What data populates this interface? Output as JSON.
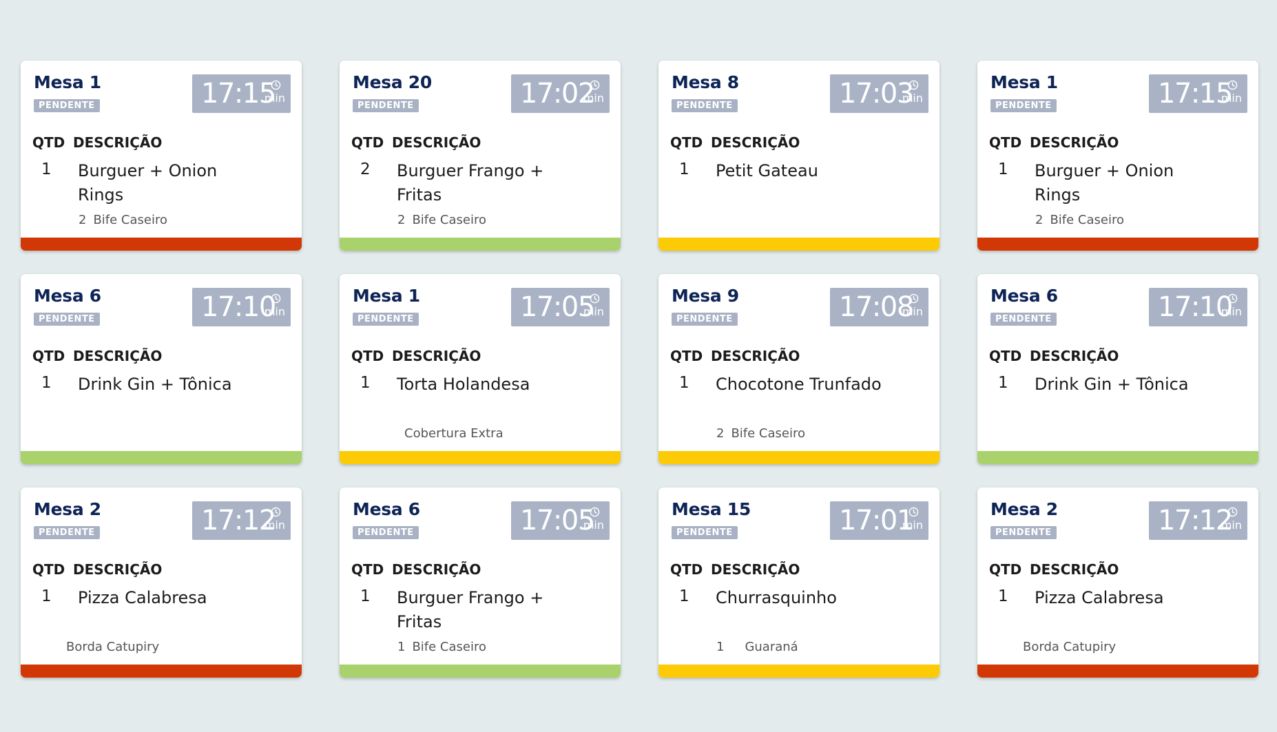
{
  "labels": {
    "status": "PENDENTE",
    "qtd_header": "QTD",
    "desc_header": "DESCRIÇÃO",
    "timer_unit": "min"
  },
  "icons": {
    "timer": "clock-icon"
  },
  "colors": {
    "red": "#d23805",
    "green": "#a9d26d",
    "yellow": "#fccb06",
    "title": "#0e2456",
    "timer_bg": "#a9b3c5",
    "background": "#e3ebec"
  },
  "orders": [
    {
      "table": "Mesa 1",
      "time": "17:15",
      "qty": "1",
      "item": "Burguer + Onion Rings",
      "extra_qty": "2",
      "extra": "Bife Caseiro",
      "bar_color": "#d23805"
    },
    {
      "table": "Mesa 20",
      "time": "17:02",
      "qty": "2",
      "item": "Burguer Frango + Fritas",
      "extra_qty": "2",
      "extra": "Bife Caseiro",
      "bar_color": "#a9d26d"
    },
    {
      "table": "Mesa 8",
      "time": "17:03",
      "qty": "1",
      "item": "Petit Gateau",
      "extra_qty": "",
      "extra": "",
      "bar_color": "#fccb06"
    },
    {
      "table": "Mesa 1",
      "time": "17:15",
      "qty": "1",
      "item": "Burguer + Onion Rings",
      "extra_qty": "2",
      "extra": "Bife Caseiro",
      "bar_color": "#d23805"
    },
    {
      "table": "Mesa 6",
      "time": "17:10",
      "qty": "1",
      "item": "Drink Gin + Tônica",
      "extra_qty": "",
      "extra": "",
      "bar_color": "#a9d26d"
    },
    {
      "table": "Mesa 1",
      "time": "17:05",
      "qty": "1",
      "item": "Torta Holandesa",
      "extra_qty": "",
      "extra": "Cobertura Extra",
      "bar_color": "#fccb06"
    },
    {
      "table": "Mesa 9",
      "time": "17:08",
      "qty": "1",
      "item": "Chocotone Trunfado",
      "extra_qty": "2",
      "extra": "Bife Caseiro",
      "bar_color": "#fccb06"
    },
    {
      "table": "Mesa 6",
      "time": "17:10",
      "qty": "1",
      "item": "Drink Gin + Tônica",
      "extra_qty": "",
      "extra": "",
      "bar_color": "#a9d26d"
    },
    {
      "table": "Mesa 2",
      "time": "17:12",
      "qty": "1",
      "item": "Pizza Calabresa",
      "extra_qty": "",
      "extra": "Borda Catupiry",
      "extra_style": "wide",
      "bar_color": "#d23805"
    },
    {
      "table": "Mesa 6",
      "time": "17:05",
      "qty": "1",
      "item": "Burguer Frango + Fritas",
      "extra_qty": "1",
      "extra": "Bife Caseiro",
      "bar_color": "#a9d26d"
    },
    {
      "table": "Mesa 15",
      "time": "17:01",
      "qty": "1",
      "item": "Churrasquinho",
      "extra_qty": "1",
      "extra": "Guaraná",
      "extra_style": "spaced",
      "bar_color": "#fccb06"
    },
    {
      "table": "Mesa 2",
      "time": "17:12",
      "qty": "1",
      "item": "Pizza Calabresa",
      "extra_qty": "",
      "extra": "Borda Catupiry",
      "extra_style": "wide",
      "bar_color": "#d23805"
    }
  ]
}
